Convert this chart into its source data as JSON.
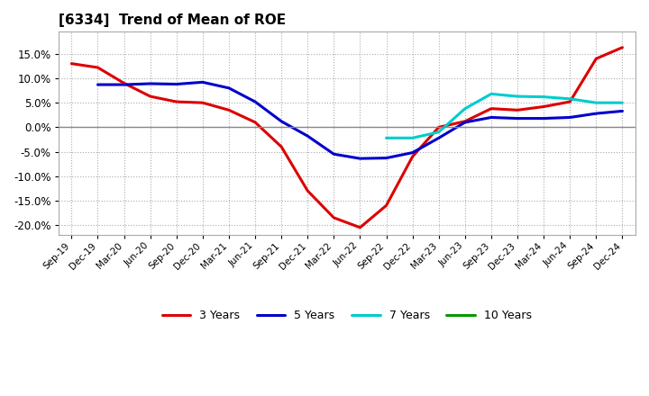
{
  "title": "[6334]  Trend of Mean of ROE",
  "title_fontsize": 11,
  "background_color": "#ffffff",
  "ylim": [
    -0.22,
    0.195
  ],
  "yticks": [
    -0.2,
    -0.15,
    -0.1,
    -0.05,
    0.0,
    0.05,
    0.1,
    0.15
  ],
  "x_labels": [
    "Sep-19",
    "Dec-19",
    "Mar-20",
    "Jun-20",
    "Sep-20",
    "Dec-20",
    "Mar-21",
    "Jun-21",
    "Sep-21",
    "Dec-21",
    "Mar-22",
    "Jun-22",
    "Sep-22",
    "Dec-22",
    "Mar-23",
    "Jun-23",
    "Sep-23",
    "Dec-23",
    "Mar-24",
    "Jun-24",
    "Sep-24",
    "Dec-24"
  ],
  "series": [
    {
      "name": "3 Years",
      "color": "#dd0000",
      "values": [
        0.13,
        0.122,
        0.09,
        0.063,
        0.052,
        0.05,
        0.035,
        0.01,
        -0.04,
        -0.13,
        -0.185,
        -0.205,
        -0.16,
        -0.06,
        0.0,
        0.012,
        0.038,
        0.035,
        0.042,
        0.052,
        0.14,
        0.163
      ]
    },
    {
      "name": "5 Years",
      "color": "#0000cc",
      "values": [
        null,
        0.087,
        0.087,
        0.089,
        0.088,
        0.092,
        0.08,
        0.052,
        0.012,
        -0.018,
        -0.055,
        -0.064,
        -0.063,
        -0.052,
        -0.022,
        0.01,
        0.02,
        0.018,
        0.018,
        0.02,
        0.028,
        0.033
      ]
    },
    {
      "name": "7 Years",
      "color": "#00cccc",
      "values": [
        null,
        null,
        null,
        null,
        null,
        null,
        null,
        null,
        null,
        null,
        null,
        null,
        -0.022,
        -0.022,
        -0.01,
        0.038,
        0.068,
        0.063,
        0.062,
        0.058,
        0.05,
        0.05
      ]
    },
    {
      "name": "10 Years",
      "color": "#009900",
      "values": [
        null,
        null,
        null,
        null,
        null,
        null,
        null,
        null,
        null,
        null,
        null,
        null,
        null,
        null,
        null,
        null,
        null,
        null,
        null,
        null,
        null,
        null
      ]
    }
  ]
}
